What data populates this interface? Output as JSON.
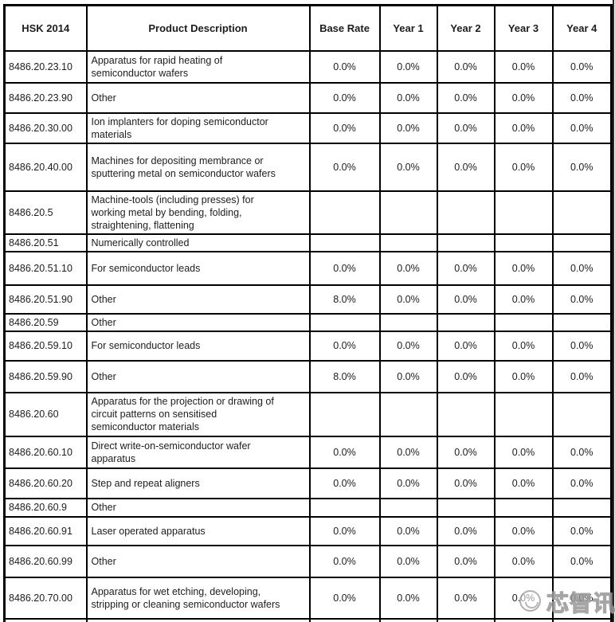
{
  "table": {
    "headers": [
      "HSK 2014",
      "Product Description",
      "Base Rate",
      "Year 1",
      "Year 2",
      "Year 3",
      "Year 4"
    ],
    "rows": [
      {
        "code": "8486.20.23.10",
        "description": "Apparatus for rapid heating of\nsemiconductor wafers",
        "rates": [
          "0.0%",
          "0.0%",
          "0.0%",
          "0.0%",
          "0.0%"
        ]
      },
      {
        "code": "8486.20.23.90",
        "description": "Other",
        "rates": [
          "0.0%",
          "0.0%",
          "0.0%",
          "0.0%",
          "0.0%"
        ]
      },
      {
        "code": "8486.20.30.00",
        "description": "Ion implanters for doping semiconductor\nmaterials",
        "rates": [
          "0.0%",
          "0.0%",
          "0.0%",
          "0.0%",
          "0.0%"
        ]
      },
      {
        "code": "8486.20.40.00",
        "description": "Machines for depositing membrance or\nsputtering metal on semiconductor wafers",
        "rates": [
          "0.0%",
          "0.0%",
          "0.0%",
          "0.0%",
          "0.0%"
        ]
      },
      {
        "code": "8486.20.5",
        "description": "Machine-tools (including presses) for\nworking metal by bending, folding,\nstraightening, flattening",
        "rates": [
          "",
          "",
          "",
          "",
          ""
        ]
      },
      {
        "code": "8486.20.51",
        "description": "Numerically controlled",
        "rates": [
          "",
          "",
          "",
          "",
          ""
        ]
      },
      {
        "code": "8486.20.51.10",
        "description": "For semiconductor leads",
        "rates": [
          "0.0%",
          "0.0%",
          "0.0%",
          "0.0%",
          "0.0%"
        ]
      },
      {
        "code": "8486.20.51.90",
        "description": "Other",
        "rates": [
          "8.0%",
          "0.0%",
          "0.0%",
          "0.0%",
          "0.0%"
        ]
      },
      {
        "code": "8486.20.59",
        "description": "Other",
        "rates": [
          "",
          "",
          "",
          "",
          ""
        ]
      },
      {
        "code": "8486.20.59.10",
        "description": "For semiconductor leads",
        "rates": [
          "0.0%",
          "0.0%",
          "0.0%",
          "0.0%",
          "0.0%"
        ]
      },
      {
        "code": "8486.20.59.90",
        "description": "Other",
        "rates": [
          "8.0%",
          "0.0%",
          "0.0%",
          "0.0%",
          "0.0%"
        ]
      },
      {
        "code": "8486.20.60",
        "description": "Apparatus for the projection or drawing of\ncircuit patterns on sensitised\nsemiconductor materials",
        "rates": [
          "",
          "",
          "",
          "",
          ""
        ]
      },
      {
        "code": "8486.20.60.10",
        "description": "Direct write-on-semiconductor wafer\napparatus",
        "rates": [
          "0.0%",
          "0.0%",
          "0.0%",
          "0.0%",
          "0.0%"
        ]
      },
      {
        "code": "8486.20.60.20",
        "description": "Step and repeat aligners",
        "rates": [
          "0.0%",
          "0.0%",
          "0.0%",
          "0.0%",
          "0.0%"
        ]
      },
      {
        "code": "8486.20.60.9",
        "description": "Other",
        "rates": [
          "",
          "",
          "",
          "",
          ""
        ]
      },
      {
        "code": "8486.20.60.91",
        "description": "Laser operated apparatus",
        "rates": [
          "0.0%",
          "0.0%",
          "0.0%",
          "0.0%",
          "0.0%"
        ]
      },
      {
        "code": "8486.20.60.99",
        "description": "Other",
        "rates": [
          "0.0%",
          "0.0%",
          "0.0%",
          "0.0%",
          "0.0%"
        ]
      },
      {
        "code": "8486.20.70.00",
        "description": "Apparatus for wet etching, developing,\nstripping or cleaning semiconductor wafers",
        "rates": [
          "0.0%",
          "0.0%",
          "0.0%",
          "0.0%",
          "0.0%"
        ]
      }
    ]
  },
  "watermark": {
    "text": "芯智讯",
    "logo": "xinzhixun-logo"
  },
  "colors": {
    "border": "#000000",
    "text": "#1d1d1d",
    "background": "#ffffff",
    "watermark": "#969696"
  }
}
